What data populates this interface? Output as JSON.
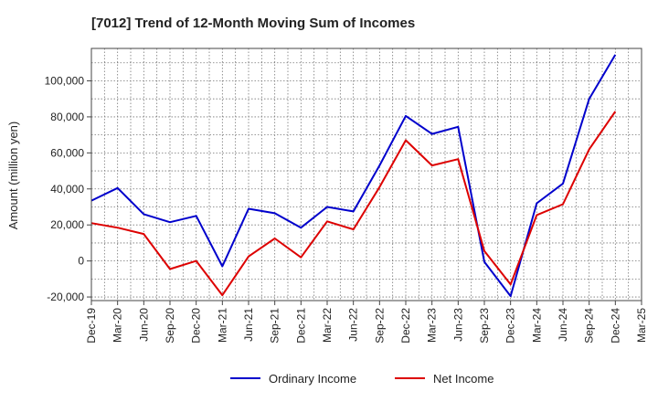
{
  "chart_data": {
    "type": "line",
    "title": "[7012]  Trend of 12-Month Moving Sum of Incomes",
    "xlabel": "",
    "ylabel": "Amount (million yen)",
    "ylim": [
      -22000,
      118000
    ],
    "y_ticks": [
      -20000,
      0,
      20000,
      40000,
      60000,
      80000,
      100000
    ],
    "y_tick_labels": [
      "-20,000",
      "0",
      "20,000",
      "40,000",
      "60,000",
      "80,000",
      "100,000"
    ],
    "categories": [
      "Dec-19",
      "Mar-20",
      "Jun-20",
      "Sep-20",
      "Dec-20",
      "Mar-21",
      "Jun-21",
      "Sep-21",
      "Dec-21",
      "Mar-22",
      "Jun-22",
      "Sep-22",
      "Dec-22",
      "Mar-23",
      "Jun-23",
      "Sep-23",
      "Dec-23",
      "Mar-24",
      "Jun-24",
      "Sep-24",
      "Dec-24",
      "Mar-25"
    ],
    "grid": true,
    "legend_position": "bottom-center",
    "series": [
      {
        "name": "Ordinary Income",
        "color": "#0000cc",
        "values": [
          33500,
          40500,
          26000,
          21500,
          25000,
          -3000,
          29000,
          26500,
          18500,
          30000,
          27500,
          53000,
          80500,
          70500,
          74500,
          -500,
          -19500,
          32000,
          43000,
          90000,
          114500,
          null
        ]
      },
      {
        "name": "Net Income",
        "color": "#dd0000",
        "values": [
          21000,
          18500,
          15000,
          -4500,
          0,
          -19000,
          2500,
          12500,
          2000,
          22000,
          17500,
          41000,
          67000,
          53000,
          56500,
          5500,
          -13000,
          25500,
          31500,
          62000,
          83000,
          null
        ]
      }
    ]
  }
}
